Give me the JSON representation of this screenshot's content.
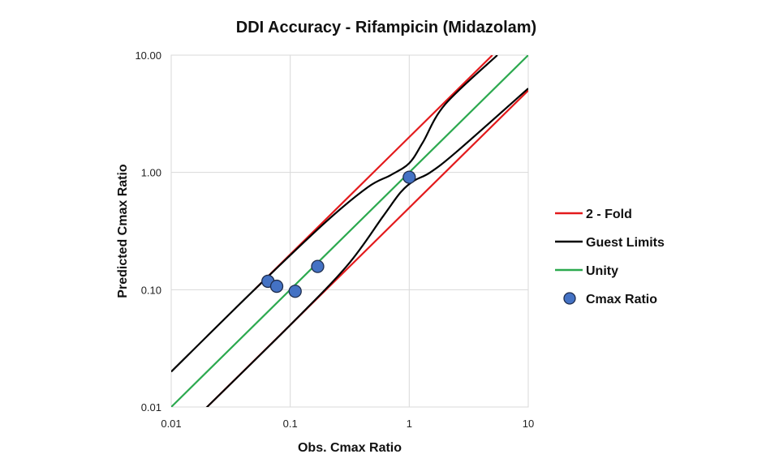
{
  "chart_data": {
    "type": "scatter",
    "title": "DDI Accuracy - Rifampicin (Midazolam)",
    "xlabel": "Obs.  Cmax Ratio",
    "ylabel": "Predicted Cmax  Ratio",
    "xscale": "log",
    "yscale": "log",
    "xlim": [
      0.01,
      10
    ],
    "ylim": [
      0.01,
      10
    ],
    "x_ticks": [
      "0.01",
      "0.1",
      "1",
      "10"
    ],
    "y_ticks": [
      "0.01",
      "0.10",
      "1.00",
      "10.00"
    ],
    "grid": true,
    "legend_position": "right",
    "series": [
      {
        "name": "2 - Fold",
        "kind": "line",
        "color": "#e31a1c",
        "segments": [
          {
            "x": [
              0.05,
              5
            ],
            "y": [
              0.1,
              10
            ]
          },
          {
            "x": [
              0.02,
              10
            ],
            "y": [
              0.01,
              5
            ]
          }
        ]
      },
      {
        "name": "Guest Limits",
        "kind": "line",
        "color": "#000000",
        "segments": [
          {
            "x": [
              0.01,
              0.05,
              0.2,
              0.45,
              0.7,
              1.0,
              1.3,
              2.0,
              5.5
            ],
            "y": [
              0.02,
              0.1,
              0.38,
              0.75,
              0.95,
              1.2,
              1.8,
              3.8,
              10
            ]
          },
          {
            "x": [
              0.019,
              0.1,
              0.3,
              0.6,
              0.85,
              1.1,
              1.5,
              2.5,
              10
            ],
            "y": [
              0.0095,
              0.05,
              0.16,
              0.42,
              0.68,
              0.85,
              1.0,
              1.5,
              5.2
            ]
          }
        ]
      },
      {
        "name": "Unity",
        "kind": "line",
        "color": "#2ca94f",
        "segments": [
          {
            "x": [
              0.01,
              10
            ],
            "y": [
              0.01,
              10
            ]
          }
        ]
      },
      {
        "name": "Cmax Ratio",
        "kind": "points",
        "color": "#4472c4",
        "x": [
          0.065,
          0.077,
          0.11,
          0.17,
          1.0
        ],
        "y": [
          0.118,
          0.107,
          0.097,
          0.158,
          0.91
        ]
      }
    ]
  }
}
